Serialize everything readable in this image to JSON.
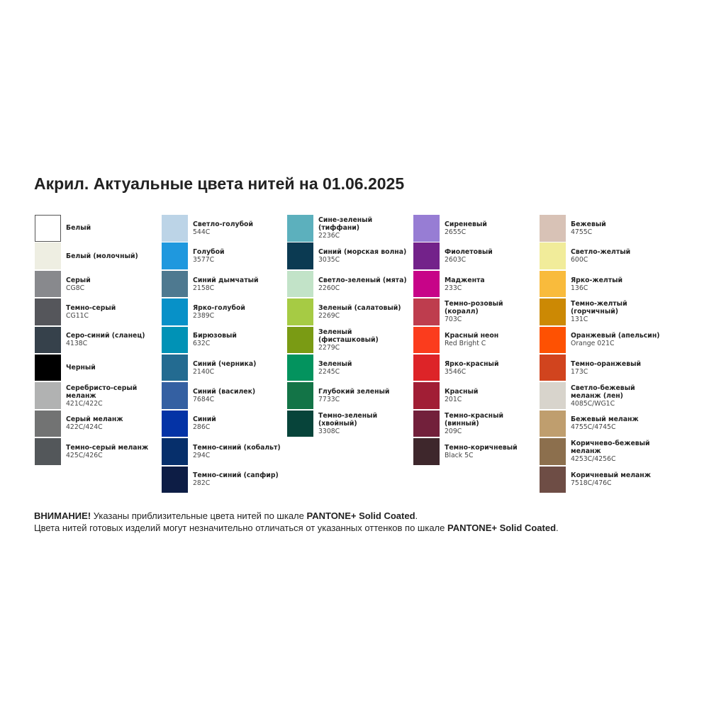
{
  "title": "Акрил. Актуальные цвета нитей на 01.06.2025",
  "columns": [
    [
      {
        "name": "Белый",
        "code": "",
        "color": "#ffffff"
      },
      {
        "name": "Белый (молочный)",
        "code": "",
        "color": "#eeeee2"
      },
      {
        "name": "Серый",
        "code": "CG8C",
        "color": "#88898d"
      },
      {
        "name": "Темно-серый",
        "code": "CG11C",
        "color": "#55565b"
      },
      {
        "name": "Серо-синий (сланец)",
        "code": "4138C",
        "color": "#36414b"
      },
      {
        "name": "Черный",
        "code": "",
        "color": "#000000"
      },
      {
        "name": "Серебристо-серый меланж",
        "code": "421C/422C",
        "color": "#b1b2b2"
      },
      {
        "name": "Серый меланж",
        "code": "422C/424C",
        "color": "#727373"
      },
      {
        "name": "Темно-серый меланж",
        "code": "425C/426C",
        "color": "#53575a"
      }
    ],
    [
      {
        "name": "Светло-голубой",
        "code": "544C",
        "color": "#bcd4e7"
      },
      {
        "name": "Голубой",
        "code": "3577C",
        "color": "#1f98de"
      },
      {
        "name": "Синий дымчатый",
        "code": "2158C",
        "color": "#4e7990"
      },
      {
        "name": "Ярко-голубой",
        "code": "2389C",
        "color": "#0791c8"
      },
      {
        "name": "Бирюзовый",
        "code": "632C",
        "color": "#0092b6"
      },
      {
        "name": "Синий (черника)",
        "code": "2140C",
        "color": "#236b91"
      },
      {
        "name": "Синий (василек)",
        "code": "7684C",
        "color": "#3460a2"
      },
      {
        "name": "Синий",
        "code": "286C",
        "color": "#0433a6"
      },
      {
        "name": "Темно-синий (кобальт)",
        "code": "294C",
        "color": "#062f6b"
      },
      {
        "name": "Темно-синий (сапфир)",
        "code": "282C",
        "color": "#0d1d45"
      }
    ],
    [
      {
        "name": "Сине-зеленый (тиффани)",
        "code": "2236C",
        "color": "#5cb0bd"
      },
      {
        "name": "Синий (морская волна)",
        "code": "3035C",
        "color": "#0b3a52"
      },
      {
        "name": "Светло-зеленый (мята)",
        "code": "2260C",
        "color": "#c2e3c8"
      },
      {
        "name": "Зеленый (салатовый)",
        "code": "2269C",
        "color": "#a6cb44"
      },
      {
        "name": "Зеленый (фисташковый)",
        "code": "2279C",
        "color": "#7a9b14"
      },
      {
        "name": "Зеленый",
        "code": "2245C",
        "color": "#03935e"
      },
      {
        "name": "Глубокий зеленый",
        "code": "7733C",
        "color": "#137447"
      },
      {
        "name": "Темно-зеленый (хвойный)",
        "code": "3308C",
        "color": "#07443a"
      }
    ],
    [
      {
        "name": "Сиреневый",
        "code": "2655C",
        "color": "#977dd4"
      },
      {
        "name": "Фиолетовый",
        "code": "2603C",
        "color": "#73228a"
      },
      {
        "name": "Маджента",
        "code": "233C",
        "color": "#c70488"
      },
      {
        "name": "Темно-розовый (коралл)",
        "code": "703C",
        "color": "#be3d4e"
      },
      {
        "name": "Красный неон",
        "code": "Red Bright C",
        "color": "#fb3c1d"
      },
      {
        "name": "Ярко-красный",
        "code": "3546C",
        "color": "#dd2428"
      },
      {
        "name": "Красный",
        "code": "201C",
        "color": "#a11e35"
      },
      {
        "name": "Темно-красный (винный)",
        "code": "209C",
        "color": "#72203b"
      },
      {
        "name": "Темно-коричневый",
        "code": "Black 5C",
        "color": "#3e272c"
      }
    ],
    [
      {
        "name": "Бежевый",
        "code": "4755C",
        "color": "#d8c2b6"
      },
      {
        "name": "Светло-желтый",
        "code": "600C",
        "color": "#f1ec9a"
      },
      {
        "name": "Ярко-желтый",
        "code": "136C",
        "color": "#f9bb3c"
      },
      {
        "name": "Темно-желтый (горчичный)",
        "code": "131C",
        "color": "#cc8904"
      },
      {
        "name": "Оранжевый (апельсин)",
        "code": "Orange 021C",
        "color": "#fe5102"
      },
      {
        "name": "Темно-оранжевый",
        "code": "173C",
        "color": "#d1441e"
      },
      {
        "name": "Светло-бежевый меланж (лен)",
        "code": "4085C/WG1C",
        "color": "#d8d4cc"
      },
      {
        "name": "Бежевый меланж",
        "code": "4755C/4745C",
        "color": "#bf9e6e"
      },
      {
        "name": "Коричнево-бежевый меланж",
        "code": "4253C/4256C",
        "color": "#8c6f4d"
      },
      {
        "name": "Коричневый меланж",
        "code": "7518C/476C",
        "color": "#6e4d45"
      }
    ]
  ],
  "notice": {
    "line1_bold": "ВНИМАНИЕ!",
    "line1_text": " Указаны приблизительные цвета нитей по шкале ",
    "line1_brand": "PANTONE+ Solid Coated",
    "line1_end": ".",
    "line2_text": "Цвета нитей готовых изделий могут незначительно отличаться от указанных оттенков по шкале ",
    "line2_brand": "PANTONE+ Solid Coated",
    "line2_end": "."
  }
}
